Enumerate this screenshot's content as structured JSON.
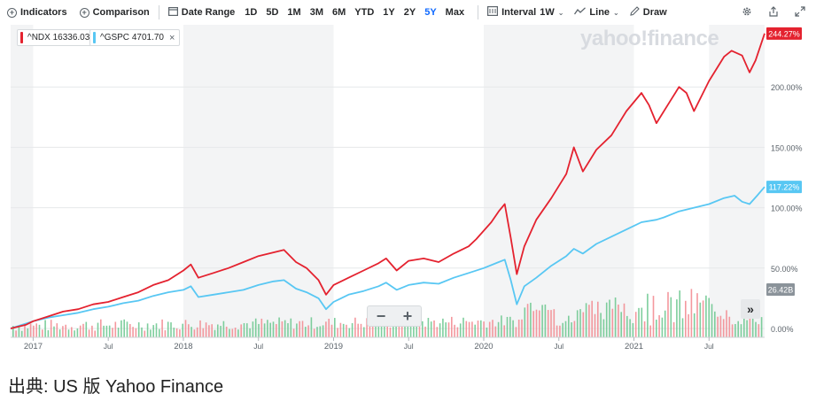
{
  "toolbar": {
    "indicators": "Indicators",
    "comparison": "Comparison",
    "date_range": "Date Range",
    "ranges": [
      "1D",
      "5D",
      "1M",
      "3M",
      "6M",
      "YTD",
      "1Y",
      "2Y",
      "5Y",
      "Max"
    ],
    "active_range": "5Y",
    "interval_label": "Interval",
    "interval_value": "1W",
    "chart_type": "Line",
    "draw": "Draw",
    "icons": [
      "gear-icon",
      "share-icon",
      "expand-icon"
    ]
  },
  "legend": [
    {
      "symbol": "^NDX",
      "value": "16336.03",
      "color": "#e4222f",
      "removable": false
    },
    {
      "symbol": "^GSPC",
      "value": "4701.70",
      "color": "#58c7f3",
      "removable": true
    }
  ],
  "watermark": "yahoo!finance",
  "controls": {
    "zoom_out": "−",
    "zoom_in": "+",
    "scroll": "»"
  },
  "volume_label": "26.42B",
  "source": "出典: US 版 Yahoo Finance",
  "chart_data": {
    "type": "line",
    "y_unit": "percent change",
    "ylim": [
      0,
      250
    ],
    "y_ticks": [
      "0.00%",
      "50.00%",
      "100.00%",
      "150.00%",
      "200.00%"
    ],
    "x_ticks": [
      {
        "label": "2017",
        "t": 0.0
      },
      {
        "label": "Jul",
        "t": 0.5
      },
      {
        "label": "2018",
        "t": 1.0
      },
      {
        "label": "Jul",
        "t": 1.5
      },
      {
        "label": "2019",
        "t": 2.0
      },
      {
        "label": "Jul",
        "t": 2.5
      },
      {
        "label": "2020",
        "t": 3.0
      },
      {
        "label": "Jul",
        "t": 3.5
      },
      {
        "label": "2021",
        "t": 4.0
      },
      {
        "label": "Jul",
        "t": 4.5
      }
    ],
    "xlim": [
      -0.15,
      4.87
    ],
    "shaded_years": [
      [
        -0.15,
        0.0
      ],
      [
        1.0,
        2.0
      ],
      [
        3.0,
        4.0
      ],
      [
        4.5,
        4.87
      ]
    ],
    "series": [
      {
        "name": "^NDX",
        "color": "#e4222f",
        "last_label": "244.27%",
        "points": [
          [
            -0.15,
            0
          ],
          [
            -0.05,
            3
          ],
          [
            0.0,
            6
          ],
          [
            0.1,
            10
          ],
          [
            0.2,
            14
          ],
          [
            0.3,
            16
          ],
          [
            0.4,
            20
          ],
          [
            0.5,
            22
          ],
          [
            0.6,
            26
          ],
          [
            0.7,
            30
          ],
          [
            0.8,
            36
          ],
          [
            0.9,
            40
          ],
          [
            1.0,
            48
          ],
          [
            1.05,
            53
          ],
          [
            1.1,
            42
          ],
          [
            1.2,
            46
          ],
          [
            1.3,
            50
          ],
          [
            1.4,
            55
          ],
          [
            1.5,
            60
          ],
          [
            1.6,
            63
          ],
          [
            1.67,
            65
          ],
          [
            1.75,
            55
          ],
          [
            1.82,
            50
          ],
          [
            1.9,
            40
          ],
          [
            1.95,
            28
          ],
          [
            2.0,
            36
          ],
          [
            2.1,
            42
          ],
          [
            2.2,
            48
          ],
          [
            2.3,
            54
          ],
          [
            2.35,
            58
          ],
          [
            2.42,
            48
          ],
          [
            2.5,
            56
          ],
          [
            2.6,
            58
          ],
          [
            2.7,
            55
          ],
          [
            2.8,
            62
          ],
          [
            2.9,
            68
          ],
          [
            2.95,
            74
          ],
          [
            3.05,
            88
          ],
          [
            3.1,
            97
          ],
          [
            3.14,
            103
          ],
          [
            3.18,
            75
          ],
          [
            3.22,
            45
          ],
          [
            3.27,
            68
          ],
          [
            3.35,
            90
          ],
          [
            3.45,
            108
          ],
          [
            3.55,
            128
          ],
          [
            3.6,
            150
          ],
          [
            3.66,
            130
          ],
          [
            3.75,
            148
          ],
          [
            3.85,
            160
          ],
          [
            3.95,
            180
          ],
          [
            4.05,
            195
          ],
          [
            4.1,
            185
          ],
          [
            4.15,
            170
          ],
          [
            4.25,
            190
          ],
          [
            4.3,
            200
          ],
          [
            4.35,
            195
          ],
          [
            4.4,
            180
          ],
          [
            4.5,
            205
          ],
          [
            4.6,
            225
          ],
          [
            4.65,
            230
          ],
          [
            4.72,
            226
          ],
          [
            4.77,
            212
          ],
          [
            4.81,
            222
          ],
          [
            4.87,
            244.27
          ]
        ]
      },
      {
        "name": "^GSPC",
        "color": "#58c7f3",
        "last_label": "117.22%",
        "points": [
          [
            -0.15,
            0
          ],
          [
            0.0,
            6
          ],
          [
            0.1,
            9
          ],
          [
            0.2,
            11
          ],
          [
            0.3,
            13
          ],
          [
            0.4,
            16
          ],
          [
            0.5,
            18
          ],
          [
            0.6,
            21
          ],
          [
            0.7,
            23
          ],
          [
            0.8,
            27
          ],
          [
            0.9,
            30
          ],
          [
            1.0,
            32
          ],
          [
            1.05,
            35
          ],
          [
            1.1,
            26
          ],
          [
            1.2,
            28
          ],
          [
            1.3,
            30
          ],
          [
            1.4,
            32
          ],
          [
            1.5,
            36
          ],
          [
            1.6,
            39
          ],
          [
            1.67,
            40
          ],
          [
            1.75,
            33
          ],
          [
            1.82,
            30
          ],
          [
            1.9,
            25
          ],
          [
            1.95,
            16
          ],
          [
            2.0,
            22
          ],
          [
            2.1,
            28
          ],
          [
            2.2,
            31
          ],
          [
            2.3,
            35
          ],
          [
            2.35,
            38
          ],
          [
            2.42,
            32
          ],
          [
            2.5,
            36
          ],
          [
            2.6,
            38
          ],
          [
            2.7,
            37
          ],
          [
            2.8,
            42
          ],
          [
            2.9,
            46
          ],
          [
            3.0,
            50
          ],
          [
            3.1,
            55
          ],
          [
            3.14,
            57
          ],
          [
            3.18,
            40
          ],
          [
            3.22,
            20
          ],
          [
            3.27,
            35
          ],
          [
            3.35,
            42
          ],
          [
            3.45,
            52
          ],
          [
            3.55,
            60
          ],
          [
            3.6,
            66
          ],
          [
            3.66,
            62
          ],
          [
            3.75,
            70
          ],
          [
            3.85,
            76
          ],
          [
            3.95,
            82
          ],
          [
            4.05,
            88
          ],
          [
            4.15,
            90
          ],
          [
            4.2,
            92
          ],
          [
            4.3,
            97
          ],
          [
            4.4,
            100
          ],
          [
            4.5,
            103
          ],
          [
            4.6,
            108
          ],
          [
            4.67,
            110
          ],
          [
            4.72,
            105
          ],
          [
            4.77,
            103
          ],
          [
            4.82,
            110
          ],
          [
            4.87,
            117.22
          ]
        ]
      }
    ]
  }
}
